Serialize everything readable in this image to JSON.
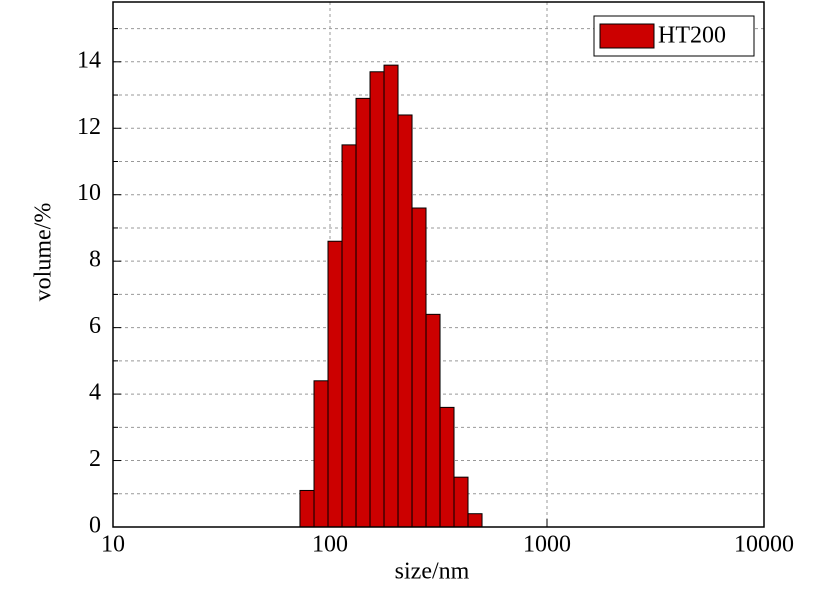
{
  "chart_data": {
    "type": "histogram",
    "x_label": "size/nm",
    "y_label": "volume/%",
    "bins": [
      72.7,
      84.4,
      97.9,
      113.6,
      131.8,
      152.9,
      177.4,
      205.8,
      238.8,
      277.0,
      321.4,
      372.8,
      432.5,
      501.9
    ],
    "series": [
      {
        "name": "HT200",
        "color": "#cc0000",
        "values": [
          1.1,
          4.4,
          8.6,
          11.5,
          12.9,
          13.7,
          13.9,
          12.4,
          9.6,
          6.4,
          3.6,
          1.5,
          0.4
        ]
      }
    ],
    "xlim": [
      10,
      10000
    ],
    "xticks": [
      10,
      100,
      1000,
      10000
    ],
    "x_log": true,
    "ylim": [
      0,
      15.8
    ],
    "yticks": [
      0,
      2,
      4,
      6,
      8,
      10,
      12,
      14
    ],
    "yminorticks": [
      1,
      3,
      5,
      7,
      9,
      11,
      13,
      15
    ],
    "grid": true,
    "legend": "upper-right"
  }
}
